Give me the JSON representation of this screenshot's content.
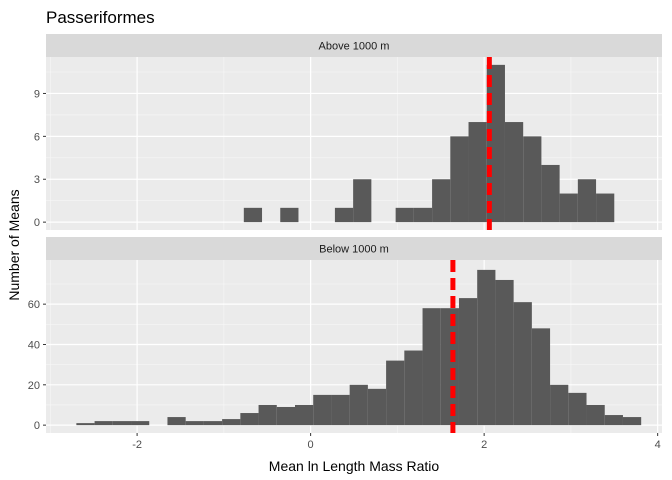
{
  "chart_data": {
    "type": "histogram",
    "title": "Passeriformes",
    "xlabel": "Mean ln Length Mass Ratio",
    "ylabel": "Number of Means",
    "xlim": [
      -3.05,
      4.05
    ],
    "x_ticks": [
      -2,
      0,
      2,
      4
    ],
    "x_tick_labels": [
      "-2",
      "0",
      "2",
      "4"
    ],
    "bin_width": 0.21,
    "bar_color": "#595959",
    "panel_background": "#ebebeb",
    "strip_background": "#d9d9d9",
    "grid": true,
    "reference_line_color": "#ff0000",
    "panels": [
      {
        "strip_label": "Above 1000 m",
        "ylim": [
          -0.55,
          11.55
        ],
        "y_ticks": [
          0,
          3,
          6,
          9
        ],
        "y_tick_labels": [
          "0",
          "3",
          "6",
          "9"
        ],
        "reference_line_x": 2.06,
        "bins": [
          {
            "x0": -0.77,
            "x1": -0.56,
            "count": 1
          },
          {
            "x0": -0.35,
            "x1": -0.14,
            "count": 1
          },
          {
            "x0": 0.28,
            "x1": 0.49,
            "count": 1
          },
          {
            "x0": 0.49,
            "x1": 0.7,
            "count": 3
          },
          {
            "x0": 0.98,
            "x1": 1.19,
            "count": 1
          },
          {
            "x0": 1.19,
            "x1": 1.4,
            "count": 1
          },
          {
            "x0": 1.4,
            "x1": 1.61,
            "count": 3
          },
          {
            "x0": 1.61,
            "x1": 1.82,
            "count": 6
          },
          {
            "x0": 1.82,
            "x1": 2.03,
            "count": 7
          },
          {
            "x0": 2.03,
            "x1": 2.24,
            "count": 11
          },
          {
            "x0": 2.24,
            "x1": 2.45,
            "count": 7
          },
          {
            "x0": 2.45,
            "x1": 2.66,
            "count": 6
          },
          {
            "x0": 2.66,
            "x1": 2.87,
            "count": 4
          },
          {
            "x0": 2.87,
            "x1": 3.08,
            "count": 2
          },
          {
            "x0": 3.08,
            "x1": 3.29,
            "count": 3
          },
          {
            "x0": 3.29,
            "x1": 3.5,
            "count": 2
          }
        ]
      },
      {
        "strip_label": "Below 1000 m",
        "ylim": [
          -3.9,
          81.9
        ],
        "y_ticks": [
          0,
          20,
          40,
          60
        ],
        "y_tick_labels": [
          "0",
          "20",
          "40",
          "60"
        ],
        "reference_line_x": 1.64,
        "bins": [
          {
            "x0": -2.7,
            "x1": -2.49,
            "count": 1
          },
          {
            "x0": -2.49,
            "x1": -2.28,
            "count": 2
          },
          {
            "x0": -2.28,
            "x1": -2.07,
            "count": 2
          },
          {
            "x0": -2.07,
            "x1": -1.86,
            "count": 2
          },
          {
            "x0": -1.65,
            "x1": -1.44,
            "count": 4
          },
          {
            "x0": -1.44,
            "x1": -1.23,
            "count": 2
          },
          {
            "x0": -1.23,
            "x1": -1.02,
            "count": 2
          },
          {
            "x0": -1.02,
            "x1": -0.81,
            "count": 3
          },
          {
            "x0": -0.81,
            "x1": -0.6,
            "count": 6
          },
          {
            "x0": -0.6,
            "x1": -0.39,
            "count": 10
          },
          {
            "x0": -0.39,
            "x1": -0.18,
            "count": 9
          },
          {
            "x0": -0.18,
            "x1": 0.03,
            "count": 10
          },
          {
            "x0": 0.03,
            "x1": 0.24,
            "count": 15
          },
          {
            "x0": 0.24,
            "x1": 0.45,
            "count": 15
          },
          {
            "x0": 0.45,
            "x1": 0.66,
            "count": 20
          },
          {
            "x0": 0.66,
            "x1": 0.87,
            "count": 18
          },
          {
            "x0": 0.87,
            "x1": 1.08,
            "count": 32
          },
          {
            "x0": 1.08,
            "x1": 1.29,
            "count": 37
          },
          {
            "x0": 1.29,
            "x1": 1.5,
            "count": 58
          },
          {
            "x0": 1.5,
            "x1": 1.71,
            "count": 58
          },
          {
            "x0": 1.71,
            "x1": 1.92,
            "count": 63
          },
          {
            "x0": 1.92,
            "x1": 2.13,
            "count": 77
          },
          {
            "x0": 2.13,
            "x1": 2.34,
            "count": 72
          },
          {
            "x0": 2.34,
            "x1": 2.55,
            "count": 61
          },
          {
            "x0": 2.55,
            "x1": 2.76,
            "count": 48
          },
          {
            "x0": 2.76,
            "x1": 2.97,
            "count": 20
          },
          {
            "x0": 2.97,
            "x1": 3.18,
            "count": 16
          },
          {
            "x0": 3.18,
            "x1": 3.39,
            "count": 10
          },
          {
            "x0": 3.39,
            "x1": 3.6,
            "count": 5
          },
          {
            "x0": 3.6,
            "x1": 3.81,
            "count": 4
          }
        ]
      }
    ]
  }
}
